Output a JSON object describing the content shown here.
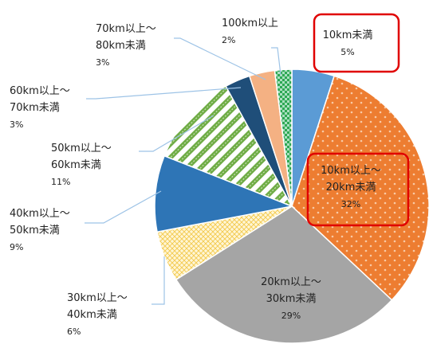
{
  "chart_data": {
    "type": "pie",
    "start_angle_deg": 0,
    "direction": "clockwise",
    "slices": [
      {
        "label_lines": [
          "10km未満"
        ],
        "percent_label": "5%",
        "value": 5,
        "color": "#5b9bd5",
        "pattern": "solid",
        "highlight": true
      },
      {
        "label_lines": [
          "10km以上～",
          "20km未満"
        ],
        "percent_label": "32%",
        "value": 32,
        "color": "#ed7d31",
        "pattern": "dots",
        "highlight": true
      },
      {
        "label_lines": [
          "20km以上～",
          "30km未満"
        ],
        "percent_label": "29%",
        "value": 29,
        "color": "#a5a5a5",
        "pattern": "solid",
        "highlight": false
      },
      {
        "label_lines": [
          "30km以上～",
          "40km未満"
        ],
        "percent_label": "6%",
        "value": 6,
        "color": "#ffe699",
        "pattern": "crosshatch",
        "highlight": false
      },
      {
        "label_lines": [
          "40km以上～",
          "50km未満"
        ],
        "percent_label": "9%",
        "value": 9,
        "color": "#2e75b6",
        "pattern": "solid",
        "highlight": false
      },
      {
        "label_lines": [
          "50km以上～",
          "60km未満"
        ],
        "percent_label": "11%",
        "value": 11,
        "color": "#70ad47",
        "pattern": "diagonal-stripes",
        "highlight": false
      },
      {
        "label_lines": [
          "60km以上～",
          "70km未満"
        ],
        "percent_label": "3%",
        "value": 3,
        "color": "#1f4e79",
        "pattern": "solid",
        "highlight": false
      },
      {
        "label_lines": [
          "70km以上～",
          "80km未満"
        ],
        "percent_label": "3%",
        "value": 3,
        "color": "#f4b183",
        "pattern": "solid",
        "highlight": false
      },
      {
        "label_lines": [
          "100km以上"
        ],
        "percent_label": "2%",
        "value": 2,
        "color": "#2ea854",
        "pattern": "checker",
        "highlight": false
      }
    ],
    "highlight_color": "#e00000",
    "leader_line_color": "#9dc3e6"
  }
}
